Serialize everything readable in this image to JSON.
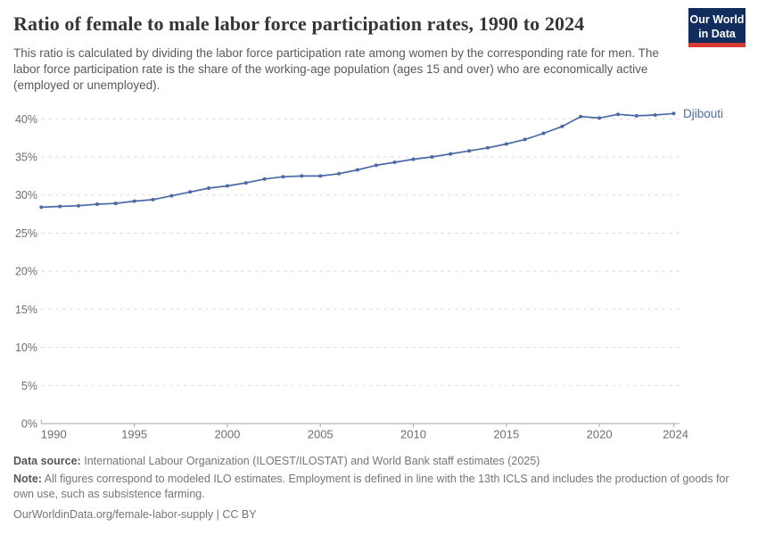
{
  "header": {
    "title": "Ratio of female to male labor force participation rates, 1990 to 2024",
    "subtitle": "This ratio is calculated by dividing the labor force participation rate among women by the corresponding rate for men. The labor force participation rate is the share of the working-age population (ages 15 and over) who are economically active (employed or unemployed).",
    "logo": {
      "line1": "Our World",
      "line2": "in Data"
    }
  },
  "chart_data": {
    "type": "line",
    "title": "Ratio of female to male labor force participation rates, 1990 to 2024",
    "xlabel": "",
    "ylabel": "",
    "xlim": [
      1990,
      2024
    ],
    "ylim": [
      0,
      42
    ],
    "grid": "horizontal-dashed",
    "legend_position": "end-of-line-label",
    "x_ticks": [
      1990,
      1995,
      2000,
      2005,
      2010,
      2015,
      2020,
      2024
    ],
    "y_ticks": [
      {
        "value": 0,
        "label": "0%"
      },
      {
        "value": 5,
        "label": "5%"
      },
      {
        "value": 10,
        "label": "10%"
      },
      {
        "value": 15,
        "label": "15%"
      },
      {
        "value": 20,
        "label": "20%"
      },
      {
        "value": 25,
        "label": "25%"
      },
      {
        "value": 30,
        "label": "30%"
      },
      {
        "value": 35,
        "label": "35%"
      },
      {
        "value": 40,
        "label": "40%"
      }
    ],
    "series": [
      {
        "name": "Djibouti",
        "end_label": "Djibouti",
        "x": [
          1990,
          1991,
          1992,
          1993,
          1994,
          1995,
          1996,
          1997,
          1998,
          1999,
          2000,
          2001,
          2002,
          2003,
          2004,
          2005,
          2006,
          2007,
          2008,
          2009,
          2010,
          2011,
          2012,
          2013,
          2014,
          2015,
          2016,
          2017,
          2018,
          2019,
          2020,
          2021,
          2022,
          2023,
          2024
        ],
        "values": [
          28.4,
          28.5,
          28.6,
          28.8,
          28.9,
          29.2,
          29.4,
          29.9,
          30.4,
          30.9,
          31.2,
          31.6,
          32.1,
          32.4,
          32.5,
          32.5,
          32.8,
          33.3,
          33.9,
          34.3,
          34.7,
          35.0,
          35.4,
          35.8,
          36.2,
          36.7,
          37.3,
          38.1,
          39.0,
          40.3,
          40.1,
          40.6,
          40.4,
          40.5,
          40.7
        ]
      }
    ]
  },
  "colors": {
    "line": "#4b69a5",
    "end_label": "#4e6ba7",
    "grid": "#dddddd",
    "axis": "#a5a5a5",
    "tick_text": "#6e6e6e",
    "logo_bg": "#112d5e",
    "logo_accent": "#d73a32"
  },
  "footer": {
    "data_source_label": "Data source:",
    "data_source_text": "International Labour Organization (ILOEST/ILOSTAT) and World Bank staff estimates (2025)",
    "note_label": "Note:",
    "note_text": "All figures correspond to modeled ILO estimates. Employment is defined in line with the 13th ICLS and includes the production of goods for own use, such as subsistence farming.",
    "url": "OurWorldinData.org/female-labor-supply",
    "separator": "|",
    "license": "CC BY"
  }
}
